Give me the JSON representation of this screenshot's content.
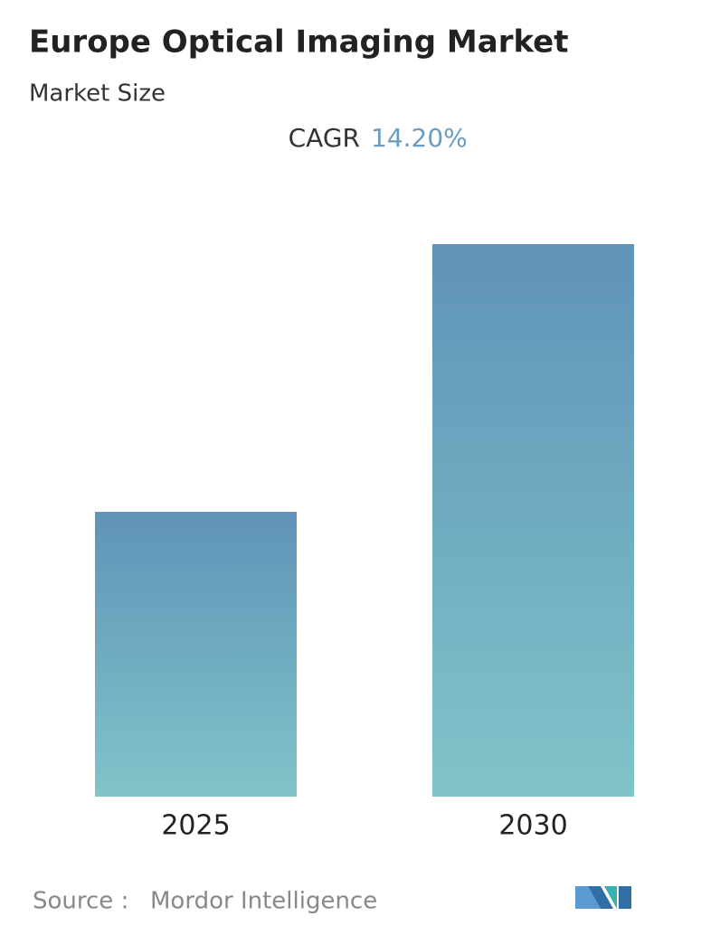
{
  "chart_data": {
    "type": "bar",
    "title": "Europe Optical Imaging Market",
    "subtitle": "Market Size",
    "cagr_label": "CAGR",
    "cagr_value": "14.20%",
    "categories": [
      "2025",
      "2030"
    ],
    "values": [
      1,
      1.94
    ],
    "source_label": "Source :",
    "source": "Mordor Intelligence"
  }
}
